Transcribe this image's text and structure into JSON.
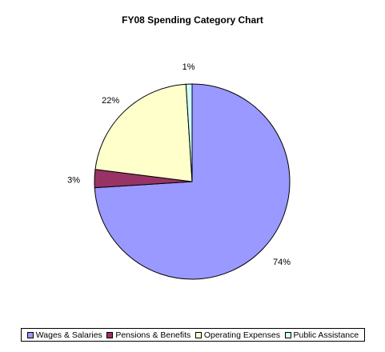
{
  "chart_data": {
    "type": "pie",
    "title": "FY08 Spending Category Chart",
    "categories": [
      "Wages & Salaries",
      "Pensions & Benefits",
      "Operating Expenses",
      "Public Assistance"
    ],
    "values": [
      74,
      3,
      22,
      1
    ],
    "labels": [
      "74%",
      "3%",
      "22%",
      "1%"
    ],
    "colors": [
      "#9999ff",
      "#993366",
      "#ffffcc",
      "#ccffff"
    ],
    "legend": "bottom"
  }
}
